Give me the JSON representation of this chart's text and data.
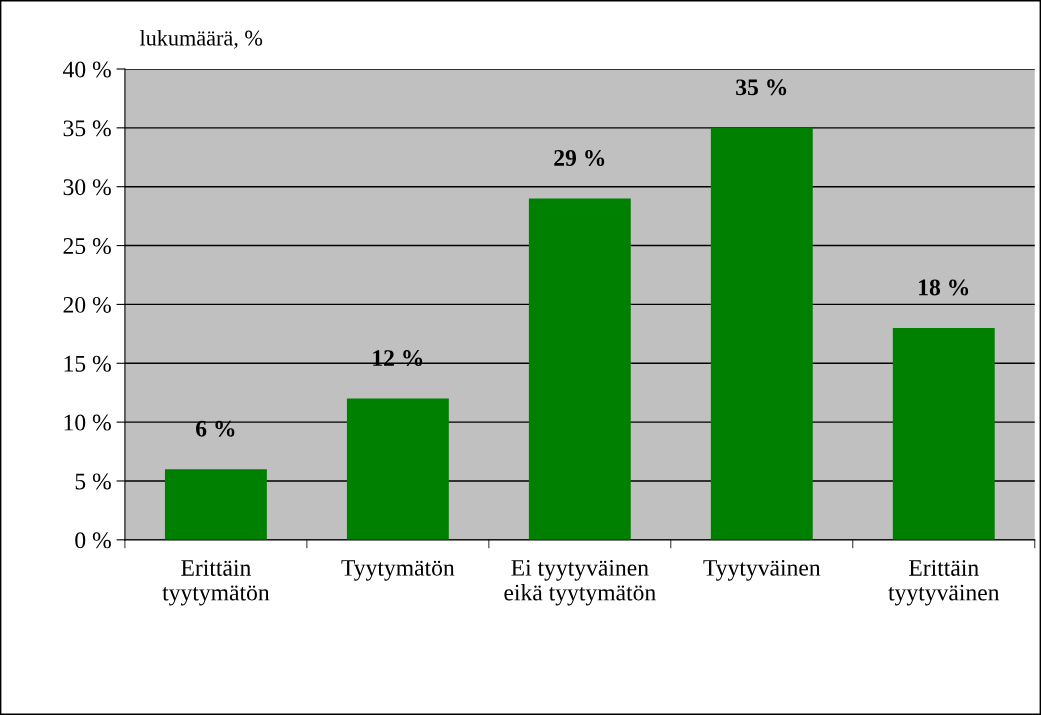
{
  "chart_data": {
    "type": "bar",
    "ylabel": "lukumäärä, %",
    "categories": [
      "Erittäin\ntyytymätön",
      "Tyytymätön",
      "Ei tyytyväinen\neikä tyytymätön",
      "Tyytyväinen",
      "Erittäin\ntyytyväinen"
    ],
    "values": [
      6,
      12,
      29,
      35,
      18
    ],
    "value_labels": [
      "6 %",
      "12 %",
      "29 %",
      "35 %",
      "18 %"
    ],
    "color": "#008000",
    "ylim": [
      0,
      40
    ],
    "yticks": [
      {
        "value": 0,
        "label": "0 %"
      },
      {
        "value": 5,
        "label": "5 %"
      },
      {
        "value": 10,
        "label": "10 %"
      },
      {
        "value": 15,
        "label": "15 %"
      },
      {
        "value": 20,
        "label": "20 %"
      },
      {
        "value": 25,
        "label": "25 %"
      },
      {
        "value": 30,
        "label": "30 %"
      },
      {
        "value": 35,
        "label": "35 %"
      },
      {
        "value": 40,
        "label": "40 %"
      }
    ],
    "grid": "y",
    "legend": false
  }
}
